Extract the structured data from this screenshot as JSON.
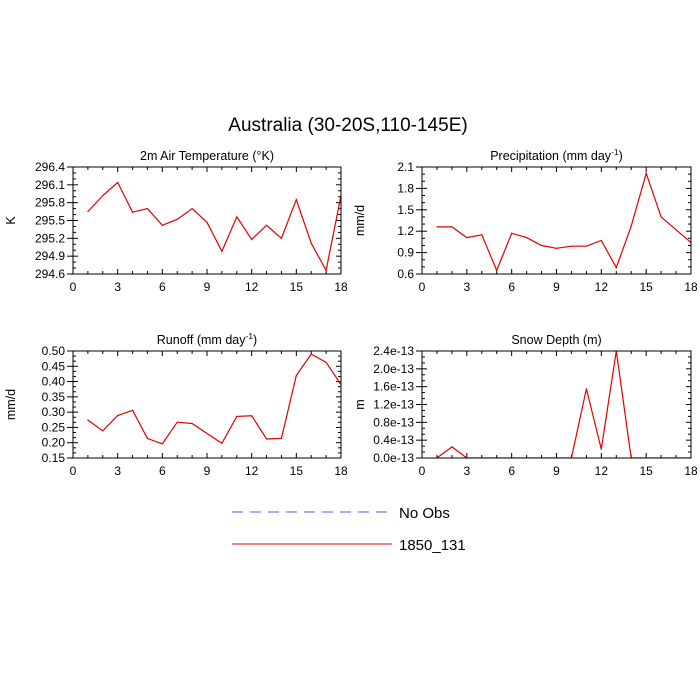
{
  "figure": {
    "title": "Australia (30-20S,110-145E)"
  },
  "legend": {
    "items": [
      {
        "label": "No Obs",
        "color": "#5a5adf",
        "dashed": true
      },
      {
        "label": "1850_131",
        "color": "#e00000",
        "dashed": false
      }
    ]
  },
  "chart_data": [
    {
      "type": "line",
      "title": "2m Air Temperature (°K)",
      "ylabel": "K",
      "xlim": [
        0,
        18
      ],
      "ylim": [
        294.6,
        296.4
      ],
      "xticks": [
        0,
        3,
        6,
        9,
        12,
        15,
        18
      ],
      "yticks": [
        "294.6",
        "294.9",
        "295.2",
        "295.5",
        "295.8",
        "296.1",
        "296.4"
      ],
      "series": [
        {
          "color": "#e00000",
          "x": [
            1,
            2,
            3,
            4,
            5,
            6,
            7,
            8,
            9,
            10,
            11,
            12,
            13,
            14,
            15,
            16,
            17,
            18
          ],
          "y": [
            295.65,
            295.92,
            296.14,
            295.64,
            295.7,
            295.42,
            295.52,
            295.7,
            295.47,
            294.98,
            295.56,
            295.18,
            295.42,
            295.2,
            295.85,
            295.12,
            294.66,
            295.92
          ]
        }
      ]
    },
    {
      "type": "line",
      "title": "Precipitation (mm day",
      "title_sup": "-1",
      "title_end": ")",
      "ylabel": "mm/d",
      "xlim": [
        0,
        18
      ],
      "ylim": [
        0.6,
        2.1
      ],
      "xticks": [
        0,
        3,
        6,
        9,
        12,
        15,
        18
      ],
      "yticks": [
        "0.6",
        "0.9",
        "1.2",
        "1.5",
        "1.8",
        "2.1"
      ],
      "series": [
        {
          "color": "#e00000",
          "x": [
            1,
            2,
            3,
            4,
            5,
            6,
            7,
            8,
            9,
            10,
            11,
            12,
            13,
            14,
            15,
            16,
            17,
            18
          ],
          "y": [
            1.26,
            1.26,
            1.11,
            1.15,
            0.65,
            1.17,
            1.11,
            1.0,
            0.96,
            0.99,
            0.99,
            1.07,
            0.69,
            1.27,
            2.01,
            1.4,
            1.22,
            1.04
          ]
        }
      ]
    },
    {
      "type": "line",
      "title": "Runoff (mm day",
      "title_sup": "-1",
      "title_end": ")",
      "ylabel": "mm/d",
      "xlim": [
        0,
        18
      ],
      "ylim": [
        0.15,
        0.5
      ],
      "xticks": [
        0,
        3,
        6,
        9,
        12,
        15,
        18
      ],
      "yticks": [
        "0.15",
        "0.20",
        "0.25",
        "0.30",
        "0.35",
        "0.40",
        "0.45",
        "0.50"
      ],
      "series": [
        {
          "color": "#e00000",
          "x": [
            1,
            2,
            3,
            4,
            5,
            6,
            7,
            8,
            9,
            10,
            11,
            12,
            13,
            14,
            15,
            16,
            17,
            18
          ],
          "y": [
            0.274,
            0.239,
            0.289,
            0.306,
            0.214,
            0.196,
            0.267,
            0.263,
            0.23,
            0.198,
            0.286,
            0.288,
            0.212,
            0.214,
            0.42,
            0.49,
            0.463,
            0.39
          ]
        }
      ]
    },
    {
      "type": "line",
      "title": "Snow Depth (m)",
      "ylabel": "m",
      "xlim": [
        0,
        18
      ],
      "ylim": [
        0,
        2.4e-13
      ],
      "xticks": [
        0,
        3,
        6,
        9,
        12,
        15,
        18
      ],
      "yticks": [
        "0.0e-13",
        "0.4e-13",
        "0.8e-13",
        "1.2e-13",
        "1.6e-13",
        "2.0e-13",
        "2.4e-13"
      ],
      "series": [
        {
          "color": "#e00000",
          "x": [
            1,
            2,
            3,
            4,
            5,
            6,
            7,
            8,
            9,
            10,
            11,
            12,
            13,
            14,
            15,
            16,
            17,
            18
          ],
          "y": [
            0,
            2.5e-14,
            0,
            0,
            0,
            0,
            0,
            0,
            0,
            0,
            1.55e-13,
            2e-14,
            2.4e-13,
            0,
            0,
            0,
            0,
            0
          ]
        }
      ]
    }
  ]
}
